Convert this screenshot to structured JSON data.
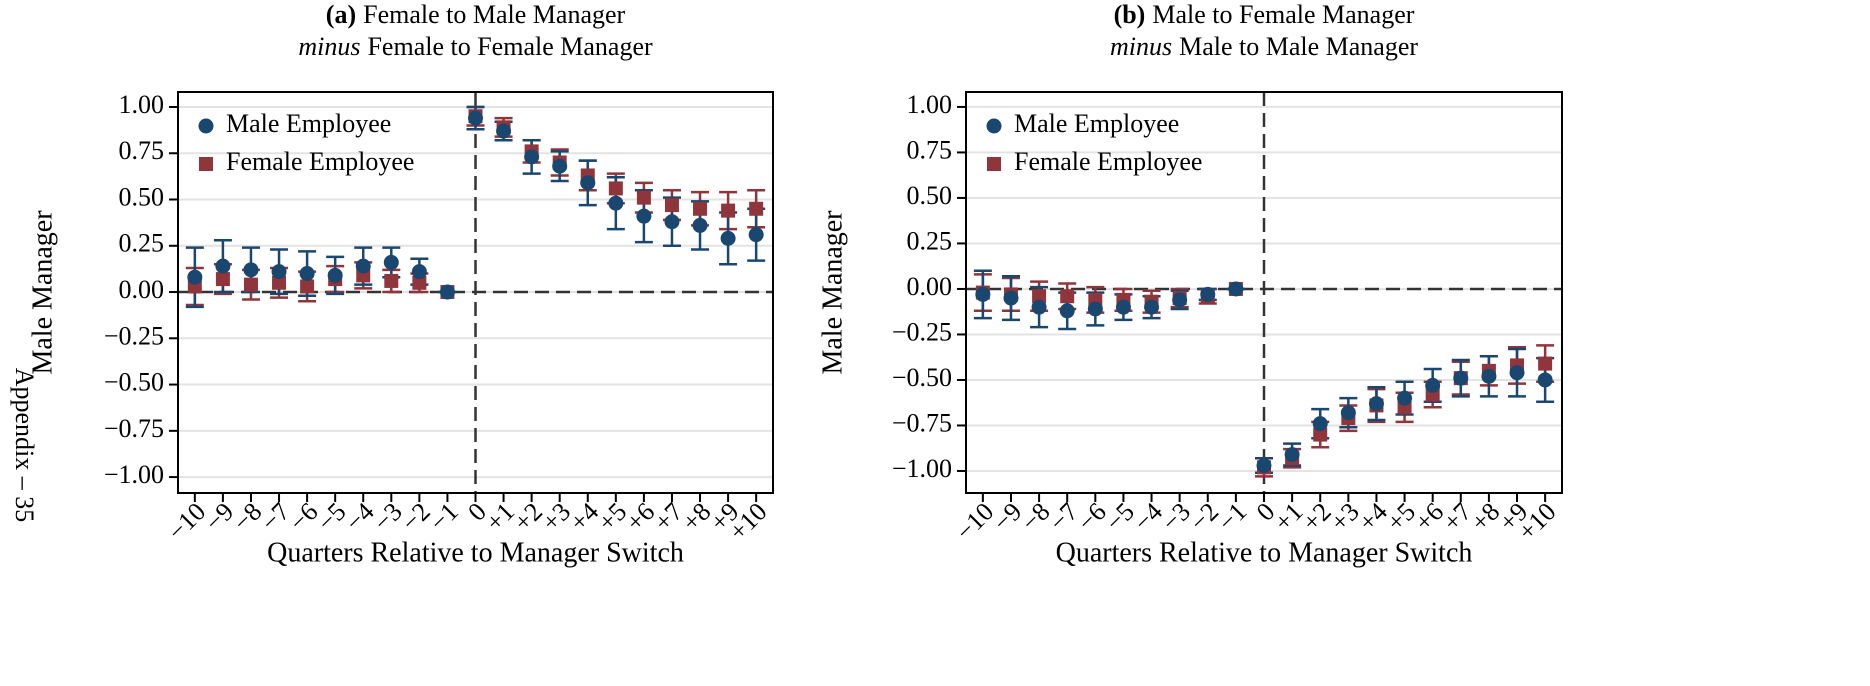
{
  "page_label": "Appendix – 35",
  "chart_data": [
    {
      "type": "errorbar",
      "title_label": "(a)",
      "title": "Female to Male Manager",
      "subtitle_emphasis": "minus",
      "subtitle": "Female to Female Manager",
      "x_label": "Quarters Relative to Manager Switch",
      "y_label": "Male Manager",
      "x": [
        -10,
        -9,
        -8,
        -7,
        -6,
        -5,
        -4,
        -3,
        -2,
        -1,
        0,
        1,
        2,
        3,
        4,
        5,
        6,
        7,
        8,
        9,
        10
      ],
      "xlim": [
        -10.6,
        10.6
      ],
      "xticks": [
        {
          "value": -10,
          "label": "−10"
        },
        {
          "value": -9,
          "label": "−9"
        },
        {
          "value": -8,
          "label": "−8"
        },
        {
          "value": -7,
          "label": "−7"
        },
        {
          "value": -6,
          "label": "−6"
        },
        {
          "value": -5,
          "label": "−5"
        },
        {
          "value": -4,
          "label": "−4"
        },
        {
          "value": -3,
          "label": "−3"
        },
        {
          "value": -2,
          "label": "−2"
        },
        {
          "value": -1,
          "label": "−1"
        },
        0,
        {
          "value": 1,
          "label": "+1"
        },
        {
          "value": 2,
          "label": "+2"
        },
        {
          "value": 3,
          "label": "+3"
        },
        {
          "value": 4,
          "label": "+4"
        },
        {
          "value": 5,
          "label": "+5"
        },
        {
          "value": 6,
          "label": "+6"
        },
        {
          "value": 7,
          "label": "+7"
        },
        {
          "value": 8,
          "label": "+8"
        },
        {
          "value": 9,
          "label": "+9"
        },
        {
          "value": 10,
          "label": "+10"
        }
      ],
      "ylim": [
        -1.086,
        1.081
      ],
      "yticks": [
        {
          "value": 1,
          "label": "1.00"
        },
        {
          "value": 0.75,
          "label": "0.75"
        },
        {
          "value": 0.5,
          "label": "0.50"
        },
        {
          "value": 0.25,
          "label": "0.25"
        },
        {
          "value": 0,
          "label": "0.00"
        },
        {
          "value": -0.25,
          "label": "−0.25"
        },
        {
          "value": -0.5,
          "label": "−0.50"
        },
        {
          "value": -0.75,
          "label": "−0.75"
        },
        {
          "value": -1,
          "label": "−1.00"
        }
      ],
      "grid": true,
      "legend": "upper-left",
      "series": [
        {
          "name": "Male Employee",
          "color": "#1a476f",
          "marker": "circle",
          "values": [
            0.08,
            0.14,
            0.12,
            0.11,
            0.1,
            0.09,
            0.14,
            0.16,
            0.11,
            0.0,
            0.94,
            0.87,
            0.73,
            0.68,
            0.59,
            0.48,
            0.41,
            0.38,
            0.36,
            0.29,
            0.31
          ],
          "errors": [
            0.16,
            0.14,
            0.12,
            0.12,
            0.12,
            0.1,
            0.1,
            0.08,
            0.07,
            0,
            0.06,
            0.05,
            0.09,
            0.08,
            0.12,
            0.14,
            0.14,
            0.13,
            0.13,
            0.14,
            0.14
          ]
        },
        {
          "name": "Female Employee",
          "color": "#90353b",
          "marker": "square",
          "values": [
            0.03,
            0.07,
            0.04,
            0.05,
            0.03,
            0.07,
            0.09,
            0.06,
            0.05,
            0.0,
            0.95,
            0.89,
            0.76,
            0.7,
            0.63,
            0.56,
            0.51,
            0.47,
            0.45,
            0.44,
            0.45
          ],
          "errors": [
            0.1,
            0.08,
            0.08,
            0.08,
            0.08,
            0.07,
            0.07,
            0.06,
            0.05,
            0,
            0.05,
            0.05,
            0.06,
            0.07,
            0.08,
            0.08,
            0.08,
            0.08,
            0.09,
            0.1,
            0.1
          ]
        }
      ]
    },
    {
      "type": "errorbar",
      "title_label": "(b)",
      "title": "Male to Female Manager",
      "subtitle_emphasis": "minus",
      "subtitle": "Male to Male Manager",
      "x_label": "Quarters Relative to Manager Switch",
      "y_label": "Male Manager",
      "x": [
        -10,
        -9,
        -8,
        -7,
        -6,
        -5,
        -4,
        -3,
        -2,
        -1,
        0,
        1,
        2,
        3,
        4,
        5,
        6,
        7,
        8,
        9,
        10
      ],
      "xlim": [
        -10.6,
        10.6
      ],
      "xticks": [
        {
          "value": -10,
          "label": "−10"
        },
        {
          "value": -9,
          "label": "−9"
        },
        {
          "value": -8,
          "label": "−8"
        },
        {
          "value": -7,
          "label": "−7"
        },
        {
          "value": -6,
          "label": "−6"
        },
        {
          "value": -5,
          "label": "−5"
        },
        {
          "value": -4,
          "label": "−4"
        },
        {
          "value": -3,
          "label": "−3"
        },
        {
          "value": -2,
          "label": "−2"
        },
        {
          "value": -1,
          "label": "−1"
        },
        0,
        {
          "value": 1,
          "label": "+1"
        },
        {
          "value": 2,
          "label": "+2"
        },
        {
          "value": 3,
          "label": "+3"
        },
        {
          "value": 4,
          "label": "+4"
        },
        {
          "value": 5,
          "label": "+5"
        },
        {
          "value": 6,
          "label": "+6"
        },
        {
          "value": 7,
          "label": "+7"
        },
        {
          "value": 8,
          "label": "+8"
        },
        {
          "value": 9,
          "label": "+9"
        },
        {
          "value": 10,
          "label": "+10"
        }
      ],
      "ylim": [
        -1.121,
        1.082
      ],
      "yticks": [
        {
          "value": 1,
          "label": "1.00"
        },
        {
          "value": 0.75,
          "label": "0.75"
        },
        {
          "value": 0.5,
          "label": "0.50"
        },
        {
          "value": 0.25,
          "label": "0.25"
        },
        {
          "value": 0,
          "label": "0.00"
        },
        {
          "value": -0.25,
          "label": "−0.25"
        },
        {
          "value": -0.5,
          "label": "−0.50"
        },
        {
          "value": -0.75,
          "label": "−0.75"
        },
        {
          "value": -1,
          "label": "−1.00"
        }
      ],
      "grid": true,
      "legend": "upper-left",
      "series": [
        {
          "name": "Male Employee",
          "color": "#1a476f",
          "marker": "circle",
          "values": [
            -0.03,
            -0.05,
            -0.1,
            -0.12,
            -0.11,
            -0.1,
            -0.1,
            -0.06,
            -0.03,
            0.0,
            -0.97,
            -0.91,
            -0.74,
            -0.68,
            -0.63,
            -0.6,
            -0.53,
            -0.49,
            -0.48,
            -0.46,
            -0.5
          ],
          "errors": [
            0.13,
            0.12,
            0.11,
            0.1,
            0.09,
            0.07,
            0.06,
            0.05,
            0.03,
            0,
            0.04,
            0.06,
            0.08,
            0.08,
            0.09,
            0.09,
            0.09,
            0.1,
            0.11,
            0.13,
            0.12
          ]
        },
        {
          "name": "Female Employee",
          "color": "#90353b",
          "marker": "square",
          "values": [
            -0.02,
            -0.03,
            -0.04,
            -0.04,
            -0.06,
            -0.06,
            -0.07,
            -0.05,
            -0.04,
            0.0,
            -0.98,
            -0.93,
            -0.8,
            -0.71,
            -0.64,
            -0.65,
            -0.58,
            -0.49,
            -0.45,
            -0.42,
            -0.41
          ],
          "errors": [
            0.1,
            0.09,
            0.08,
            0.07,
            0.07,
            0.06,
            0.06,
            0.05,
            0.04,
            0,
            0.05,
            0.05,
            0.07,
            0.07,
            0.09,
            0.08,
            0.07,
            0.09,
            0.08,
            0.1,
            0.1
          ]
        }
      ]
    }
  ]
}
